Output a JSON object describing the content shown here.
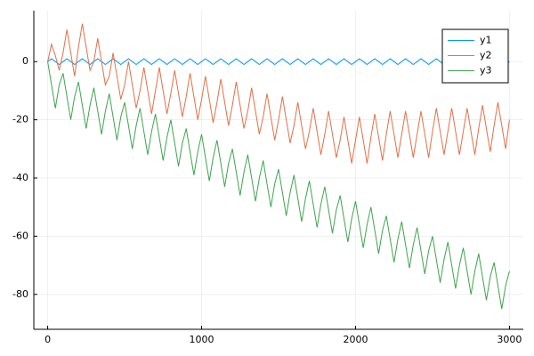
{
  "chart_data": {
    "type": "line",
    "x": [
      0,
      25,
      50,
      75,
      100,
      125,
      150,
      175,
      200,
      225,
      250,
      275,
      300,
      325,
      350,
      375,
      400,
      425,
      450,
      475,
      500,
      525,
      550,
      575,
      600,
      625,
      650,
      675,
      700,
      725,
      750,
      775,
      800,
      825,
      850,
      875,
      900,
      925,
      950,
      975,
      1000,
      1025,
      1050,
      1075,
      1100,
      1125,
      1150,
      1175,
      1200,
      1225,
      1250,
      1275,
      1300,
      1325,
      1350,
      1375,
      1400,
      1425,
      1450,
      1475,
      1500,
      1525,
      1550,
      1575,
      1600,
      1625,
      1650,
      1675,
      1700,
      1725,
      1750,
      1775,
      1800,
      1825,
      1850,
      1875,
      1900,
      1925,
      1950,
      1975,
      2000,
      2025,
      2050,
      2075,
      2100,
      2125,
      2150,
      2175,
      2200,
      2225,
      2250,
      2275,
      2300,
      2325,
      2350,
      2375,
      2400,
      2425,
      2450,
      2475,
      2500,
      2525,
      2550,
      2575,
      2600,
      2625,
      2650,
      2675,
      2700,
      2725,
      2750,
      2775,
      2800,
      2825,
      2850,
      2875,
      2900,
      2925,
      2950,
      2975,
      3000
    ],
    "series": [
      {
        "name": "y1",
        "color": "#009af9",
        "values": [
          0,
          1,
          0,
          -1,
          0,
          1,
          0,
          -1,
          0,
          1,
          0,
          -1,
          0,
          1,
          0,
          -1,
          0,
          1,
          0,
          -1,
          0,
          1,
          0,
          -1,
          0,
          1,
          0,
          -1,
          0,
          1,
          0,
          -1,
          0,
          1,
          0,
          -1,
          0,
          1,
          0,
          -1,
          0,
          1,
          0,
          -1,
          0,
          1,
          0,
          -1,
          0,
          1,
          0,
          -1,
          0,
          1,
          0,
          -1,
          0,
          1,
          0,
          -1,
          0,
          1,
          0,
          -1,
          0,
          1,
          0,
          -1,
          0,
          1,
          0,
          -1,
          0,
          1,
          0,
          -1,
          0,
          1,
          0,
          -1,
          0,
          1,
          0,
          -1,
          0,
          1,
          0,
          -1,
          0,
          1,
          0,
          -1,
          0,
          1,
          0,
          -1,
          0,
          1,
          0,
          -1,
          0,
          1,
          0,
          -1,
          0,
          1,
          0,
          -1,
          0,
          1,
          0,
          -1,
          0,
          1,
          0,
          -1,
          0,
          1,
          0,
          -1,
          0
        ]
      },
      {
        "name": "y2",
        "color": "#e26f46",
        "values": [
          0,
          6,
          2,
          -3,
          3,
          11,
          3,
          -5,
          5,
          13,
          5,
          -3,
          0,
          8,
          0,
          -8,
          -5,
          3,
          -5,
          -13,
          -8,
          0,
          -8,
          -16,
          -10,
          -2,
          -10,
          -18,
          -10,
          -2,
          -10,
          -18,
          -11,
          -3,
          -11,
          -19,
          -12,
          -4,
          -12,
          -20,
          -13,
          -5,
          -13,
          -21,
          -14,
          -6,
          -14,
          -22,
          -15,
          -7,
          -15,
          -23,
          -17,
          -9,
          -17,
          -25,
          -19,
          -11,
          -19,
          -27,
          -20,
          -12,
          -20,
          -28,
          -22,
          -14,
          -22,
          -30,
          -24,
          -16,
          -24,
          -32,
          -25,
          -17,
          -25,
          -33,
          -27,
          -19,
          -27,
          -35,
          -27,
          -19,
          -27,
          -35,
          -26,
          -18,
          -26,
          -34,
          -25,
          -17,
          -25,
          -33,
          -25,
          -17,
          -25,
          -33,
          -25,
          -17,
          -25,
          -33,
          -24,
          -16,
          -24,
          -32,
          -24,
          -16,
          -24,
          -32,
          -24,
          -16,
          -24,
          -32,
          -23,
          -15,
          -23,
          -31,
          -22,
          -14,
          -22,
          -30,
          -20
        ]
      },
      {
        "name": "y3",
        "color": "#3da44d",
        "values": [
          0,
          -8,
          -16,
          -8,
          -4,
          -12,
          -20,
          -12,
          -7,
          -15,
          -23,
          -15,
          -9,
          -17,
          -25,
          -17,
          -11,
          -19,
          -27,
          -19,
          -14,
          -22,
          -30,
          -22,
          -16,
          -24,
          -32,
          -24,
          -18,
          -26,
          -34,
          -26,
          -20,
          -28,
          -36,
          -28,
          -23,
          -31,
          -39,
          -31,
          -25,
          -33,
          -41,
          -33,
          -27,
          -35,
          -43,
          -35,
          -30,
          -38,
          -46,
          -38,
          -32,
          -40,
          -48,
          -40,
          -34,
          -42,
          -50,
          -42,
          -37,
          -45,
          -53,
          -45,
          -39,
          -47,
          -55,
          -47,
          -41,
          -49,
          -57,
          -49,
          -43,
          -51,
          -59,
          -51,
          -46,
          -54,
          -62,
          -54,
          -48,
          -56,
          -64,
          -56,
          -50,
          -58,
          -66,
          -58,
          -53,
          -61,
          -69,
          -61,
          -55,
          -63,
          -71,
          -63,
          -57,
          -65,
          -73,
          -65,
          -60,
          -68,
          -76,
          -68,
          -62,
          -70,
          -78,
          -70,
          -64,
          -72,
          -80,
          -72,
          -66,
          -74,
          -82,
          -74,
          -69,
          -77,
          -85,
          -77,
          -72
        ]
      }
    ],
    "xlim": [
      -90,
      3090
    ],
    "ylim": [
      -92,
      17.5
    ],
    "xticks": [
      0,
      1000,
      2000,
      3000
    ],
    "yticks": [
      -80,
      -60,
      -40,
      -20,
      0
    ],
    "grid": true,
    "legend": "top-right"
  }
}
